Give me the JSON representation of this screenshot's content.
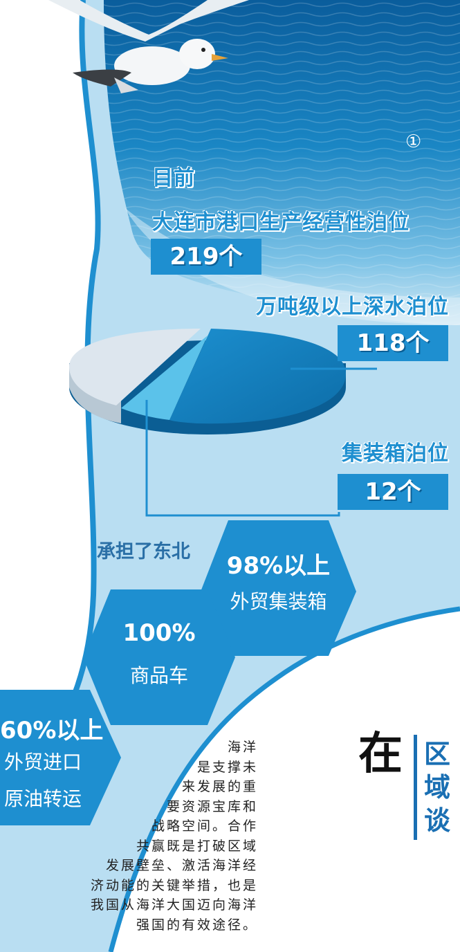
{
  "circle_number": "①",
  "intro": {
    "line1": "目前",
    "line2": "大连市港口生产经营性泊位",
    "count": "219个"
  },
  "deepwater": {
    "label": "万吨级以上深水泊位",
    "count": "118个"
  },
  "container": {
    "label": "集装箱泊位",
    "count": "12个"
  },
  "chart_data": {
    "type": "pie",
    "slices": [
      {
        "name": "万吨级以上深水泊位",
        "value": 118
      },
      {
        "name": "集装箱泊位",
        "value": 12
      },
      {
        "name": "",
        "value": 89
      }
    ]
  },
  "undertake_label": "承担了东北",
  "hexagons": [
    {
      "pct": "98%以上",
      "label": "外贸集装箱"
    },
    {
      "pct": "100%",
      "label": "商品车"
    },
    {
      "pct": "60%以上",
      "label1": "外贸进口",
      "label2": "原油转运"
    }
  ],
  "paragraph": [
    "海洋",
    "是支撑未",
    "来发展的重",
    "要资源宝库和",
    "战略空间。合作",
    "共赢既是打破区域",
    "发展壁垒、激活海洋经",
    "济动能的关键举措，也是",
    "我国从海洋大国迈向海洋",
    "强国的有效途径。"
  ],
  "big_title": "在",
  "vertical_title": [
    "区",
    "域",
    "谈"
  ],
  "colors": {
    "accent": "#1e8fd0",
    "light_band": "#b9def2",
    "sea_dark": "#0c5f9a",
    "dark_blue": "#1a6fb3"
  }
}
